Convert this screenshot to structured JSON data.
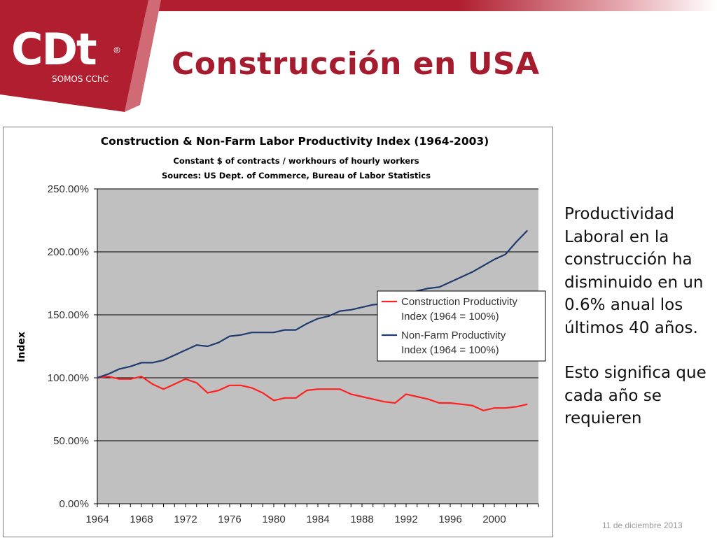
{
  "slide": {
    "title": "Construcción en USA",
    "logo_text": "CDt",
    "logo_mark": "®",
    "logo_tagline": "SOMOS CChC",
    "side_text_1": "Productividad Laboral en la construcción ha disminuido en un 0.6% anual los últimos 40 años.",
    "side_text_2": "Esto significa que cada año se requieren",
    "footer_date": "11 de diciembre 2013",
    "colors": {
      "brand_red": "#b01e2f",
      "title_red": "#a51c2e",
      "plot_bg": "#c0c0c0",
      "construction_line": "#ff2020",
      "nonfarm_line": "#1f3a6e"
    }
  },
  "chart_data": {
    "type": "line",
    "title": "Construction & Non-Farm Labor Productivity Index (1964-2003)",
    "subtitle_1": "Constant $ of contracts / workhours of hourly workers",
    "subtitle_2": "Sources: US Dept. of Commerce, Bureau of Labor Statistics",
    "xlabel": "",
    "ylabel": "Index",
    "x": [
      1964,
      1965,
      1966,
      1967,
      1968,
      1969,
      1970,
      1971,
      1972,
      1973,
      1974,
      1975,
      1976,
      1977,
      1978,
      1979,
      1980,
      1981,
      1982,
      1983,
      1984,
      1985,
      1986,
      1987,
      1988,
      1989,
      1990,
      1991,
      1992,
      1993,
      1994,
      1995,
      1996,
      1997,
      1998,
      1999,
      2000,
      2001,
      2002,
      2003
    ],
    "xlim": [
      1964,
      2004
    ],
    "xticks": [
      "1964",
      "1968",
      "1972",
      "1976",
      "1980",
      "1984",
      "1988",
      "1992",
      "1996",
      "2000"
    ],
    "ylim": [
      0,
      250
    ],
    "yticks": [
      "0.00%",
      "50.00%",
      "100.00%",
      "150.00%",
      "200.00%",
      "250.00%"
    ],
    "grid": "horizontal",
    "legend_position": "right",
    "series": [
      {
        "name": "Construction Productivity Index (1964 = 100%)",
        "legend_line1": "Construction Productivity",
        "legend_line2": "Index       (1964 = 100%)",
        "color": "#ff2020",
        "values": [
          100,
          101,
          99,
          99,
          101,
          95,
          91,
          95,
          99,
          96,
          88,
          90,
          94,
          94,
          92,
          88,
          82,
          84,
          84,
          90,
          91,
          91,
          91,
          87,
          85,
          83,
          81,
          80,
          87,
          85,
          83,
          80,
          80,
          79,
          78,
          74,
          76,
          76,
          77,
          79
        ]
      },
      {
        "name": "Non-Farm Productivity Index (1964 = 100%)",
        "legend_line1": "Non-Farm Productivity",
        "legend_line2": "Index       (1964 = 100%)",
        "color": "#1f3a6e",
        "values": [
          100,
          103,
          107,
          109,
          112,
          112,
          114,
          118,
          122,
          126,
          125,
          128,
          133,
          134,
          136,
          136,
          136,
          138,
          138,
          143,
          147,
          149,
          153,
          154,
          156,
          158,
          159,
          162,
          166,
          169,
          171,
          172,
          176,
          180,
          184,
          189,
          194,
          198,
          208,
          217
        ]
      }
    ]
  }
}
